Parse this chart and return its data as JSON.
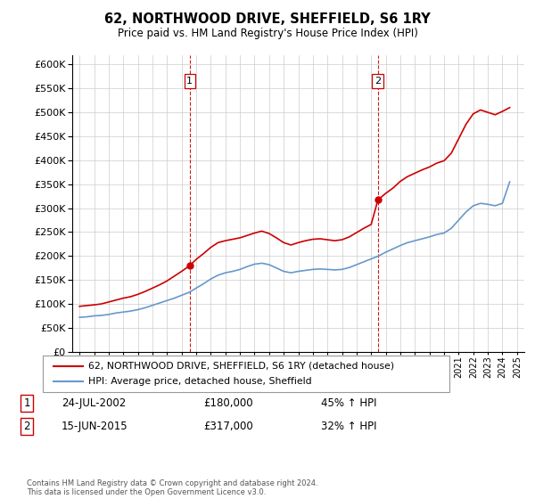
{
  "title": "62, NORTHWOOD DRIVE, SHEFFIELD, S6 1RY",
  "subtitle": "Price paid vs. HM Land Registry's House Price Index (HPI)",
  "footer": "Contains HM Land Registry data © Crown copyright and database right 2024.\nThis data is licensed under the Open Government Licence v3.0.",
  "legend_line1": "62, NORTHWOOD DRIVE, SHEFFIELD, S6 1RY (detached house)",
  "legend_line2": "HPI: Average price, detached house, Sheffield",
  "sale1_label": "1",
  "sale1_date": "24-JUL-2002",
  "sale1_price": "£180,000",
  "sale1_hpi": "45% ↑ HPI",
  "sale1_x": 2002.56,
  "sale1_y": 180000,
  "sale2_label": "2",
  "sale2_date": "15-JUN-2015",
  "sale2_price": "£317,000",
  "sale2_hpi": "32% ↑ HPI",
  "sale2_x": 2015.46,
  "sale2_y": 317000,
  "vline1_x": 2002.56,
  "vline2_x": 2015.46,
  "red_color": "#cc0000",
  "blue_color": "#6699cc",
  "ylim": [
    0,
    620000
  ],
  "yticks": [
    0,
    50000,
    100000,
    150000,
    200000,
    250000,
    300000,
    350000,
    400000,
    450000,
    500000,
    550000,
    600000
  ],
  "xlim_start": 1994.5,
  "xlim_end": 2025.5,
  "hpi_years": [
    1995.0,
    1995.5,
    1996.0,
    1996.5,
    1997.0,
    1997.5,
    1998.0,
    1998.5,
    1999.0,
    1999.5,
    2000.0,
    2000.5,
    2001.0,
    2001.5,
    2002.0,
    2002.5,
    2003.0,
    2003.5,
    2004.0,
    2004.5,
    2005.0,
    2005.5,
    2006.0,
    2006.5,
    2007.0,
    2007.5,
    2008.0,
    2008.5,
    2009.0,
    2009.5,
    2010.0,
    2010.5,
    2011.0,
    2011.5,
    2012.0,
    2012.5,
    2013.0,
    2013.5,
    2014.0,
    2014.5,
    2015.0,
    2015.5,
    2016.0,
    2016.5,
    2017.0,
    2017.5,
    2018.0,
    2018.5,
    2019.0,
    2019.5,
    2020.0,
    2020.5,
    2021.0,
    2021.5,
    2022.0,
    2022.5,
    2023.0,
    2023.5,
    2024.0,
    2024.5
  ],
  "hpi_values": [
    72000,
    73000,
    75000,
    76000,
    78000,
    81000,
    83000,
    85000,
    88000,
    92000,
    97000,
    102000,
    107000,
    112000,
    118000,
    124000,
    133000,
    142000,
    152000,
    160000,
    165000,
    168000,
    172000,
    178000,
    183000,
    185000,
    182000,
    175000,
    168000,
    165000,
    168000,
    170000,
    172000,
    173000,
    172000,
    171000,
    172000,
    176000,
    182000,
    188000,
    194000,
    200000,
    208000,
    215000,
    222000,
    228000,
    232000,
    236000,
    240000,
    245000,
    248000,
    258000,
    275000,
    292000,
    305000,
    310000,
    308000,
    305000,
    310000,
    355000
  ],
  "red_years": [
    1995.0,
    1995.5,
    1996.0,
    1996.5,
    1997.0,
    1997.5,
    1998.0,
    1998.5,
    1999.0,
    1999.5,
    2000.0,
    2000.5,
    2001.0,
    2001.5,
    2002.0,
    2002.56,
    2003.0,
    2003.5,
    2004.0,
    2004.5,
    2005.0,
    2005.5,
    2006.0,
    2006.5,
    2007.0,
    2007.5,
    2008.0,
    2008.5,
    2009.0,
    2009.5,
    2010.0,
    2010.5,
    2011.0,
    2011.5,
    2012.0,
    2012.5,
    2013.0,
    2013.5,
    2014.0,
    2014.5,
    2015.0,
    2015.46,
    2016.0,
    2016.5,
    2017.0,
    2017.5,
    2018.0,
    2018.5,
    2019.0,
    2019.5,
    2020.0,
    2020.5,
    2021.0,
    2021.5,
    2022.0,
    2022.5,
    2023.0,
    2023.5,
    2024.0,
    2024.5
  ],
  "red_values": [
    95000,
    96500,
    98000,
    100000,
    104000,
    108000,
    112000,
    115000,
    120000,
    126000,
    133000,
    140000,
    148000,
    158000,
    168000,
    180000,
    193000,
    205000,
    218000,
    228000,
    232000,
    235000,
    238000,
    243000,
    248000,
    252000,
    247000,
    238000,
    228000,
    223000,
    228000,
    232000,
    235000,
    236000,
    234000,
    232000,
    234000,
    240000,
    249000,
    258000,
    266000,
    317000,
    331000,
    342000,
    356000,
    366000,
    373000,
    380000,
    386000,
    394000,
    399000,
    415000,
    445000,
    475000,
    497000,
    505000,
    500000,
    495000,
    502000,
    510000
  ]
}
